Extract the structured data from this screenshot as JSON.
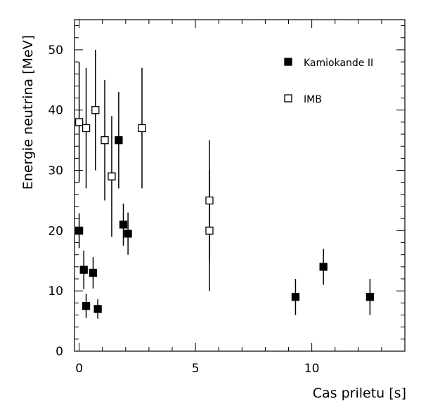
{
  "chart_data": {
    "type": "scatter",
    "title": "",
    "xlabel": "Cas priletu [s]",
    "ylabel": "Energie neutrina [MeV]",
    "xlim": [
      -0.2,
      14
    ],
    "ylim": [
      0,
      55
    ],
    "x_ticks": [
      0,
      5,
      10
    ],
    "y_ticks": [
      0,
      10,
      20,
      30,
      40,
      50
    ],
    "x_tick_labels": [
      "0",
      "5",
      "10"
    ],
    "y_tick_labels": [
      "0",
      "10",
      "20",
      "30",
      "40",
      "50"
    ],
    "grid": false,
    "legend_position": "top-right",
    "series": [
      {
        "name": "Kamiokande II",
        "marker": "filled-square",
        "color": "#000000",
        "points": [
          {
            "x": 0.0,
            "y": 20.0,
            "err": 2.9
          },
          {
            "x": 0.2,
            "y": 13.5,
            "err": 3.2
          },
          {
            "x": 0.3,
            "y": 7.5,
            "err": 2.0
          },
          {
            "x": 0.6,
            "y": 13.0,
            "err": 2.6
          },
          {
            "x": 0.8,
            "y": 7.0,
            "err": 1.6
          },
          {
            "x": 1.7,
            "y": 35.0,
            "err": 8.0
          },
          {
            "x": 1.9,
            "y": 21.0,
            "err": 3.5
          },
          {
            "x": 2.1,
            "y": 19.5,
            "err": 3.5
          },
          {
            "x": 9.3,
            "y": 9.0,
            "err": 3.0
          },
          {
            "x": 10.5,
            "y": 14.0,
            "err": 3.0
          },
          {
            "x": 12.5,
            "y": 9.0,
            "err": 3.0
          }
        ]
      },
      {
        "name": "IMB",
        "marker": "open-square",
        "color": "#000000",
        "points": [
          {
            "x": 0.0,
            "y": 38.0,
            "err": 10.0
          },
          {
            "x": 0.3,
            "y": 37.0,
            "err": 10.0
          },
          {
            "x": 0.7,
            "y": 40.0,
            "err": 10.0
          },
          {
            "x": 1.1,
            "y": 35.0,
            "err": 10.0
          },
          {
            "x": 1.4,
            "y": 29.0,
            "err": 10.0
          },
          {
            "x": 2.7,
            "y": 37.0,
            "err": 10.0
          },
          {
            "x": 5.6,
            "y": 20.0,
            "err": 10.0
          },
          {
            "x": 5.6,
            "y": 25.0,
            "err": 10.0
          }
        ]
      }
    ]
  }
}
